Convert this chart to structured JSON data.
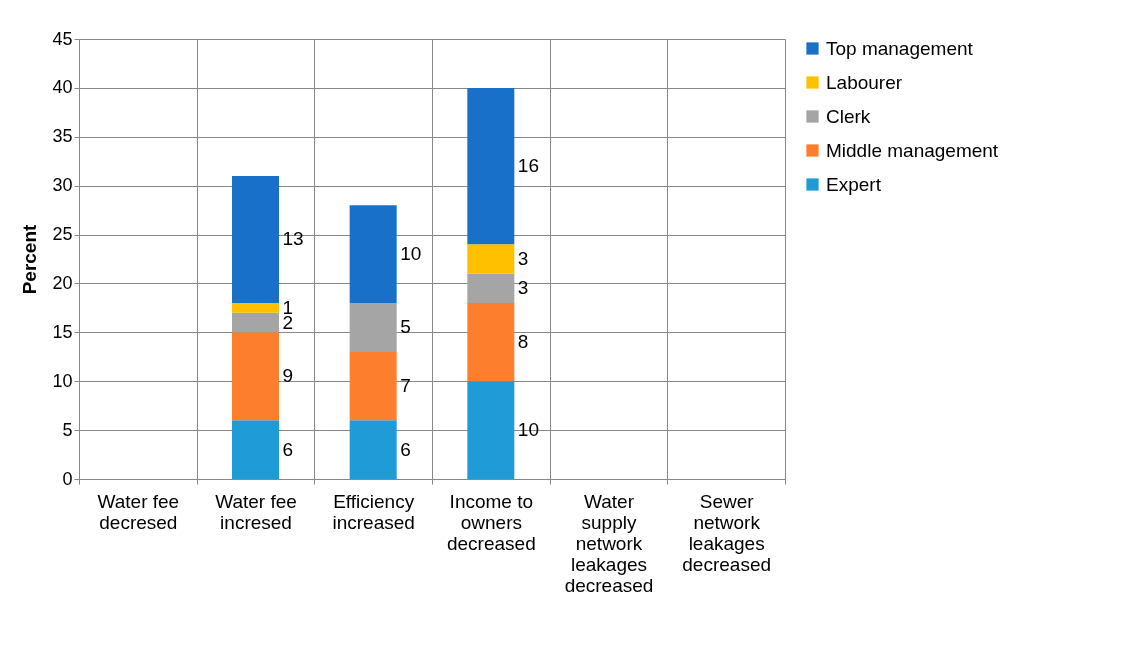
{
  "chart_data": {
    "type": "bar",
    "stacked": true,
    "ylabel": "Percent",
    "categories": [
      "Water fee decresed",
      "Water fee incresed",
      "Efficiency increased",
      "Income to owners decreased",
      "Water supply network leakages decreased",
      "Sewer network leakages decreased"
    ],
    "series": [
      {
        "name": "Expert",
        "color": "#1f9bd7",
        "values": [
          null,
          6,
          6,
          10,
          null,
          null
        ]
      },
      {
        "name": "Middle management",
        "color": "#fd7e2d",
        "values": [
          null,
          9,
          7,
          8,
          null,
          null
        ]
      },
      {
        "name": "Clerk",
        "color": "#a5a5a5",
        "values": [
          null,
          2,
          5,
          3,
          null,
          null
        ]
      },
      {
        "name": "Labourer",
        "color": "#ffc000",
        "values": [
          null,
          1,
          null,
          3,
          null,
          null
        ]
      },
      {
        "name": "Top management",
        "color": "#1870c8",
        "values": [
          null,
          13,
          10,
          16,
          null,
          null
        ]
      }
    ],
    "ylim": [
      0,
      45
    ],
    "yticks": [
      0,
      5,
      10,
      15,
      20,
      25,
      30,
      35,
      40,
      45
    ],
    "grid": true,
    "legend": "right",
    "data_labels": true
  }
}
